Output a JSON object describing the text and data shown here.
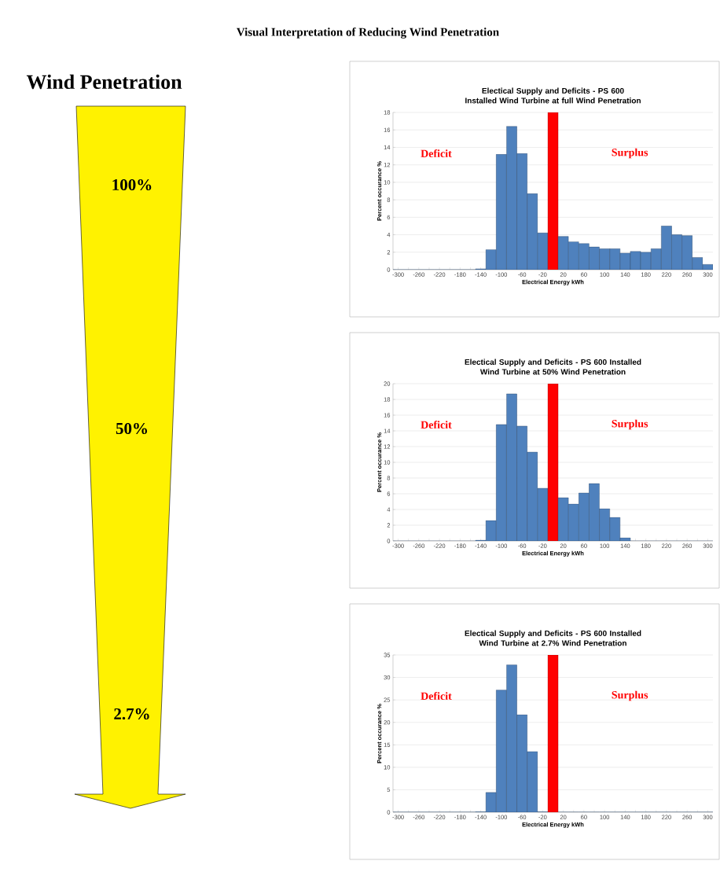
{
  "chart_data": [
    {
      "type": "other",
      "title": "Visual Interpretation of Reducing Wind Penetration",
      "subtitle": "Wind Penetration",
      "annotations": [
        "100%",
        "50%",
        "2.7%"
      ]
    },
    {
      "type": "bar",
      "title": "Electical Supply and Deficits - PS 600 Installed Wind Turbine at full Wind Penetration",
      "xlabel": "Electrical Energy kWh",
      "ylabel": "Percent occurance %",
      "categories": [
        "-300",
        null,
        "-260",
        null,
        "-220",
        null,
        "-180",
        null,
        "-140",
        null,
        "-100",
        null,
        "-60",
        null,
        "-20",
        null,
        "20",
        null,
        "60",
        null,
        "100",
        null,
        "140",
        null,
        "180",
        null,
        "220",
        null,
        "260",
        null,
        "300"
      ],
      "values": [
        0,
        0,
        0,
        0,
        0,
        0,
        0,
        0,
        0.1,
        2.3,
        13.2,
        16.4,
        13.3,
        8.7,
        4.2,
        18,
        3.8,
        3.2,
        3.0,
        2.6,
        2.4,
        2.4,
        1.9,
        2.1,
        2.0,
        2.4,
        5.0,
        4.0,
        3.9,
        1.4,
        0.6
      ],
      "colors": [
        "#4f81bd",
        "#4f81bd",
        "#4f81bd",
        "#4f81bd",
        "#4f81bd",
        "#4f81bd",
        "#4f81bd",
        "#4f81bd",
        "#4f81bd",
        "#4f81bd",
        "#4f81bd",
        "#4f81bd",
        "#4f81bd",
        "#4f81bd",
        "#4f81bd",
        "#ff0000",
        "#4f81bd",
        "#4f81bd",
        "#4f81bd",
        "#4f81bd",
        "#4f81bd",
        "#4f81bd",
        "#4f81bd",
        "#4f81bd",
        "#4f81bd",
        "#4f81bd",
        "#4f81bd",
        "#4f81bd",
        "#4f81bd",
        "#4f81bd",
        "#4f81bd"
      ],
      "ylim": [
        0,
        18
      ],
      "yticks": [
        0,
        2,
        4,
        6,
        8,
        10,
        12,
        14,
        16,
        18
      ],
      "grid": "y",
      "annotations": [
        "Deficit",
        "Surplus"
      ]
    },
    {
      "type": "bar",
      "title": "Electical Supply and Deficits - PS 600 Installed Wind Turbine at 50% Wind Penetration",
      "xlabel": "Electrical Energy kWh",
      "ylabel": "Percent occurance %",
      "categories": [
        "-300",
        null,
        "-260",
        null,
        "-220",
        null,
        "-180",
        null,
        "-140",
        null,
        "-100",
        null,
        "-60",
        null,
        "-20",
        null,
        "20",
        null,
        "60",
        null,
        "100",
        null,
        "140",
        null,
        "180",
        null,
        "220",
        null,
        "260",
        null,
        "300"
      ],
      "values": [
        0,
        0,
        0,
        0,
        0,
        0,
        0,
        0,
        0.1,
        2.6,
        14.8,
        18.7,
        14.6,
        11.3,
        6.7,
        20,
        5.5,
        4.7,
        6.1,
        7.3,
        4.1,
        3.0,
        0.4,
        0,
        0,
        0,
        0,
        0,
        0,
        0,
        0
      ],
      "colors": [
        "#4f81bd",
        "#4f81bd",
        "#4f81bd",
        "#4f81bd",
        "#4f81bd",
        "#4f81bd",
        "#4f81bd",
        "#4f81bd",
        "#4f81bd",
        "#4f81bd",
        "#4f81bd",
        "#4f81bd",
        "#4f81bd",
        "#4f81bd",
        "#4f81bd",
        "#ff0000",
        "#4f81bd",
        "#4f81bd",
        "#4f81bd",
        "#4f81bd",
        "#4f81bd",
        "#4f81bd",
        "#4f81bd",
        "#4f81bd",
        "#4f81bd",
        "#4f81bd",
        "#4f81bd",
        "#4f81bd",
        "#4f81bd",
        "#4f81bd",
        "#4f81bd"
      ],
      "ylim": [
        0,
        20
      ],
      "yticks": [
        0,
        2,
        4,
        6,
        8,
        10,
        12,
        14,
        16,
        18,
        20
      ],
      "grid": "y",
      "annotations": [
        "Deficit",
        "Surplus"
      ]
    },
    {
      "type": "bar",
      "title": "Electical Supply and Deficits - PS 600 Installed Wind Turbine at 2.7% Wind Penetration",
      "xlabel": "Electrical Energy kWh",
      "ylabel": "Percent occurance %",
      "categories": [
        "-300",
        null,
        "-260",
        null,
        "-220",
        null,
        "-180",
        null,
        "-140",
        null,
        "-100",
        null,
        "-60",
        null,
        "-20",
        null,
        "20",
        null,
        "60",
        null,
        "100",
        null,
        "140",
        null,
        "180",
        null,
        "220",
        null,
        "260",
        null,
        "300"
      ],
      "values": [
        0,
        0,
        0,
        0,
        0,
        0,
        0,
        0,
        0.1,
        4.4,
        27.2,
        32.8,
        21.7,
        13.5,
        0.1,
        35,
        0,
        0,
        0,
        0,
        0,
        0,
        0,
        0,
        0,
        0,
        0,
        0,
        0,
        0,
        0
      ],
      "colors": [
        "#4f81bd",
        "#4f81bd",
        "#4f81bd",
        "#4f81bd",
        "#4f81bd",
        "#4f81bd",
        "#4f81bd",
        "#4f81bd",
        "#4f81bd",
        "#4f81bd",
        "#4f81bd",
        "#4f81bd",
        "#4f81bd",
        "#4f81bd",
        "#4f81bd",
        "#ff0000",
        "#4f81bd",
        "#4f81bd",
        "#4f81bd",
        "#4f81bd",
        "#4f81bd",
        "#4f81bd",
        "#4f81bd",
        "#4f81bd",
        "#4f81bd",
        "#4f81bd",
        "#4f81bd",
        "#4f81bd",
        "#4f81bd",
        "#4f81bd",
        "#4f81bd"
      ],
      "ylim": [
        0,
        35
      ],
      "yticks": [
        0,
        5,
        10,
        15,
        20,
        25,
        30,
        35
      ],
      "grid": "y",
      "annotations": [
        "Deficit",
        "Surplus"
      ]
    }
  ]
}
